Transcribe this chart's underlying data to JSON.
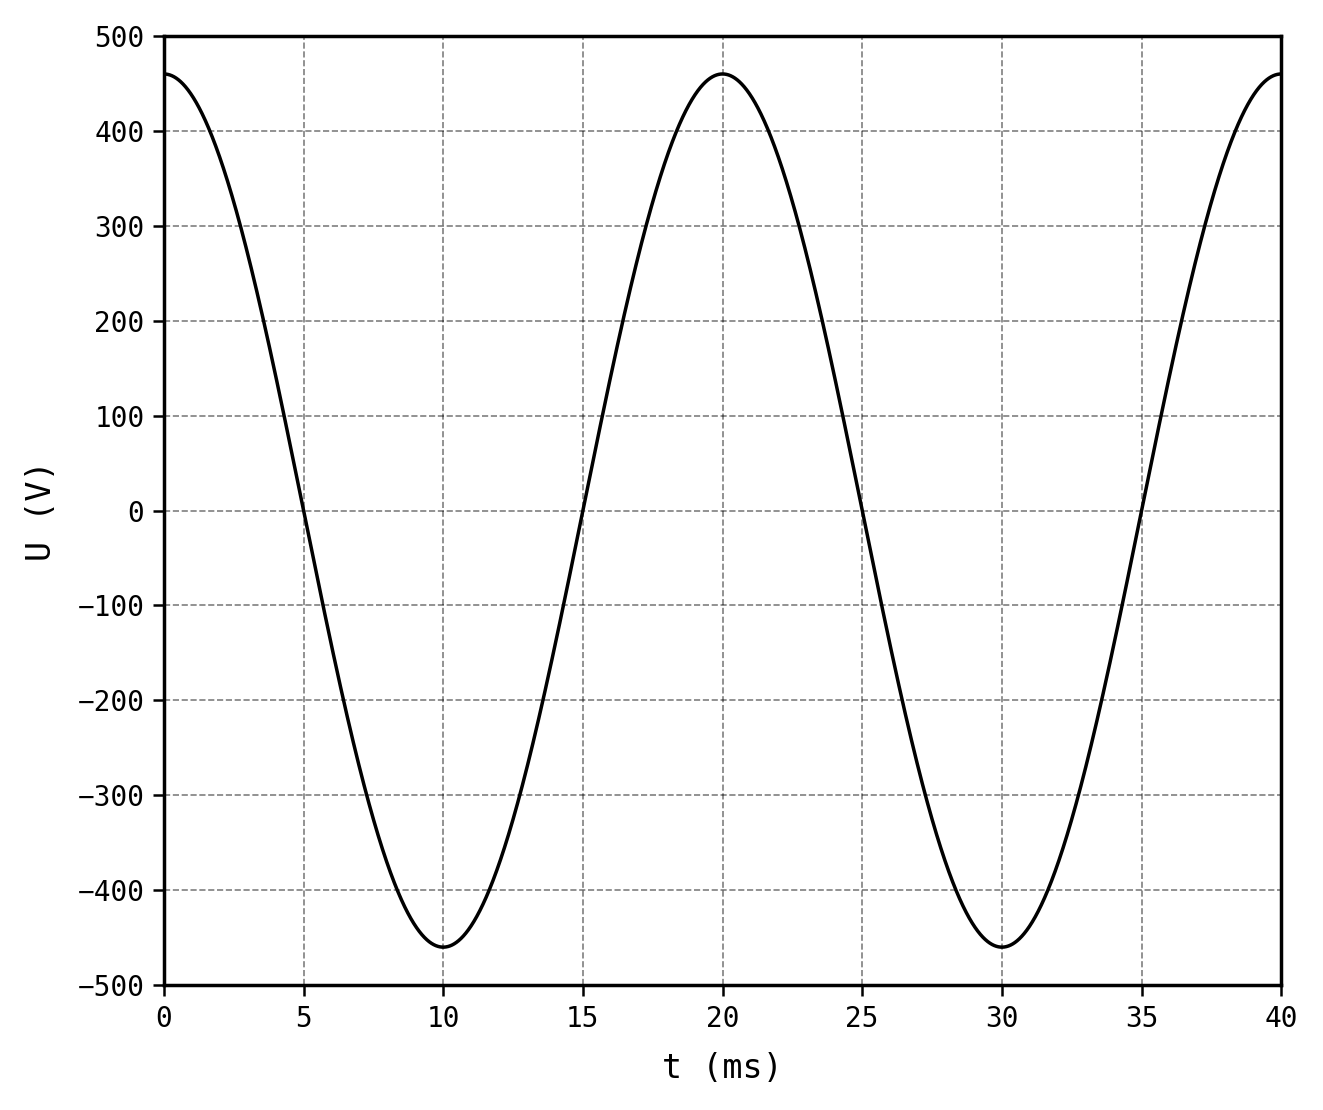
{
  "amplitude": 460,
  "frequency_hz": 50,
  "phase_deg": 0,
  "t_start_ms": 0,
  "t_end_ms": 40,
  "xlim": [
    0,
    40
  ],
  "ylim": [
    -500,
    500
  ],
  "xticks": [
    0,
    5,
    10,
    15,
    20,
    25,
    30,
    35,
    40
  ],
  "yticks": [
    -500,
    -400,
    -300,
    -200,
    -100,
    0,
    100,
    200,
    300,
    400,
    500
  ],
  "xlabel": "t (ms)",
  "ylabel": "U (V)",
  "line_color": "#000000",
  "line_width": 2.5,
  "grid_color": "#000000",
  "grid_linestyle": "--",
  "grid_linewidth": 1.2,
  "grid_alpha": 0.5,
  "background_color": "#ffffff",
  "tick_fontsize": 20,
  "label_fontsize": 24,
  "fig_width": 13.23,
  "fig_height": 11.1,
  "spine_linewidth": 2.5
}
